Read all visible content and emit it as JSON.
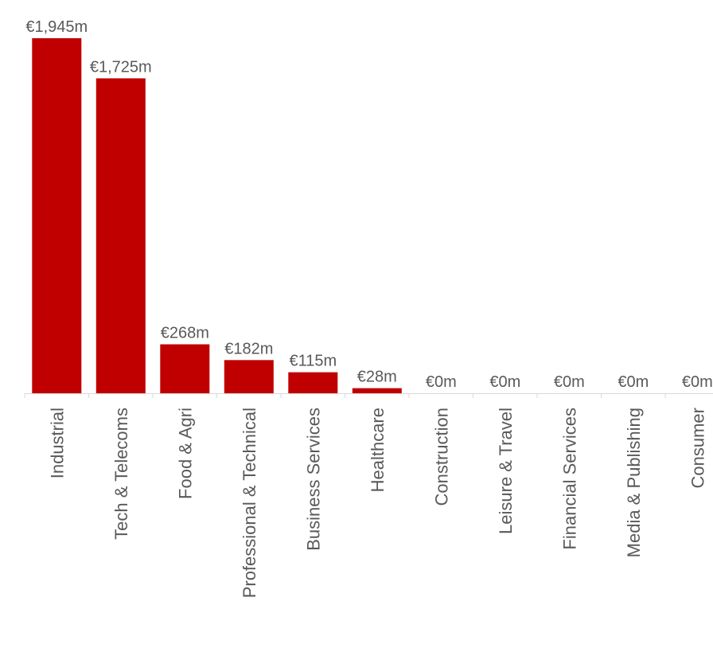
{
  "chart_data": {
    "type": "bar",
    "categories": [
      "Industrial",
      "Tech & Telecoms",
      "Food & Agri",
      "Professional & Technical",
      "Business Services",
      "Healthcare",
      "Construction",
      "Leisure & Travel",
      "Financial Services",
      "Media & Publishing",
      "Consumer"
    ],
    "values": [
      1945,
      1725,
      268,
      182,
      115,
      28,
      0,
      0,
      0,
      0,
      0
    ],
    "data_labels": [
      "€1,945m",
      "€1,725m",
      "€268m",
      "€182m",
      "€115m",
      "€28m",
      "€0m",
      "€0m",
      "€0m",
      "€0m",
      "€0m"
    ],
    "unit": "€m",
    "ylim": [
      0,
      1945
    ],
    "grid": false,
    "legend": "none",
    "colors": {
      "bar": "#C00000",
      "text": "#595959",
      "axis": "#D9D9D9"
    }
  }
}
